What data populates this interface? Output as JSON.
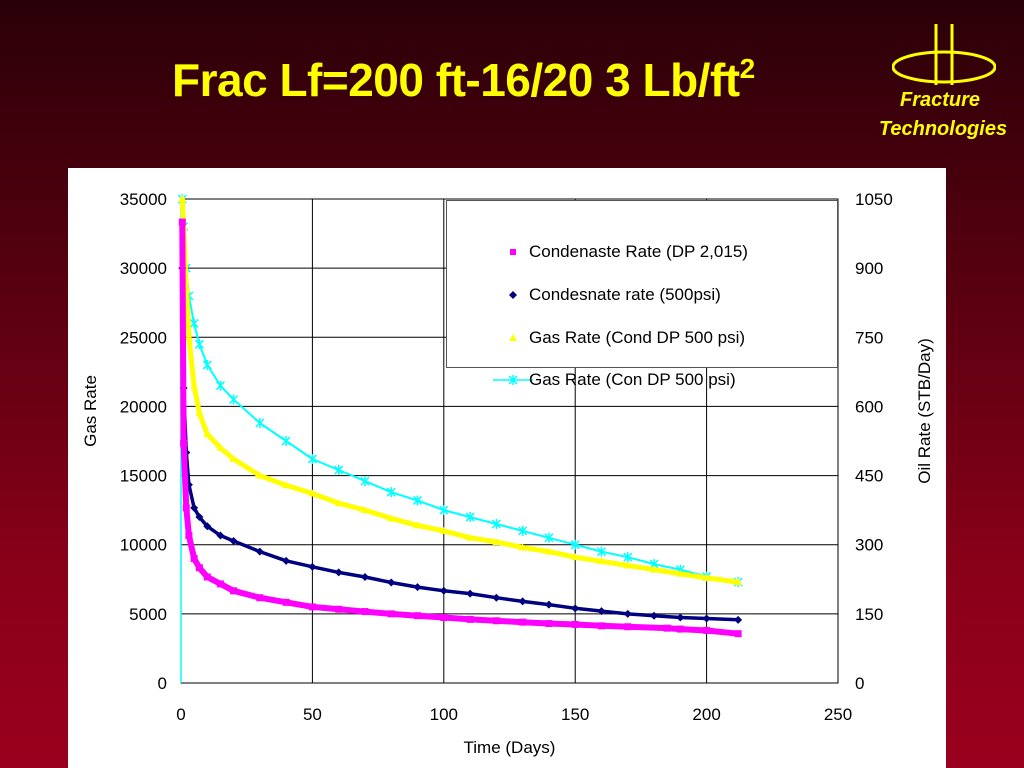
{
  "slide": {
    "title_main": "Frac Lf=200 ft-16/20 3 Lb/ft",
    "title_sup": "2",
    "logo_line1": "Fracture",
    "logo_line2": "Technologies",
    "logo_icon": "fracture-logo-icon"
  },
  "colors": {
    "title": "#ffff00",
    "background_top": "#2a0008",
    "background_bottom": "#9a001d"
  },
  "chart_data": {
    "type": "scatter",
    "title": "",
    "xlabel": "Time (Days)",
    "ylabel": "Gas Rate",
    "y2label": "Oil Rate (STB/Day)",
    "xlim": [
      0,
      250
    ],
    "ylim": [
      0,
      35000
    ],
    "y2lim": [
      0,
      1050
    ],
    "xticks": [
      "0",
      "50",
      "100",
      "150",
      "200",
      "250"
    ],
    "yticks": [
      "0",
      "5000",
      "10000",
      "15000",
      "20000",
      "25000",
      "30000",
      "35000"
    ],
    "y2ticks": [
      "0",
      "150",
      "300",
      "450",
      "600",
      "750",
      "900",
      "1050"
    ],
    "grid": true,
    "legend_position": "top-right",
    "series": [
      {
        "name": "Condenaste Rate (DP 2,015)",
        "axis": "right",
        "marker": "square",
        "color": "#ff00ff",
        "x": [
          0.5,
          1,
          2,
          3,
          5,
          7,
          10,
          15,
          20,
          30,
          40,
          50,
          60,
          70,
          80,
          90,
          100,
          110,
          120,
          130,
          140,
          150,
          160,
          170,
          185,
          190,
          200,
          212
        ],
        "y": [
          1000,
          520,
          380,
          320,
          270,
          250,
          230,
          215,
          200,
          185,
          175,
          165,
          160,
          155,
          150,
          146,
          142,
          138,
          135,
          132,
          129,
          127,
          124,
          122,
          119,
          117,
          114,
          107
        ]
      },
      {
        "name": "Condesnate rate (500psi)",
        "axis": "right",
        "marker": "diamond",
        "color": "#000080",
        "x": [
          0.5,
          1,
          2,
          3,
          5,
          7,
          10,
          15,
          20,
          30,
          40,
          50,
          60,
          70,
          80,
          90,
          100,
          110,
          120,
          130,
          140,
          150,
          160,
          170,
          180,
          190,
          200,
          212
        ],
        "y": [
          900,
          640,
          500,
          430,
          380,
          360,
          340,
          320,
          308,
          285,
          265,
          252,
          240,
          230,
          218,
          208,
          200,
          194,
          185,
          177,
          170,
          162,
          156,
          150,
          146,
          142,
          140,
          137
        ]
      },
      {
        "name": "Gas Rate (Cond DP 500 psi)",
        "axis": "left",
        "marker": "triangle",
        "color": "#ffff00",
        "x": [
          0.5,
          1,
          2,
          3,
          5,
          7,
          10,
          15,
          20,
          30,
          40,
          50,
          60,
          70,
          80,
          90,
          100,
          110,
          120,
          130,
          140,
          150,
          160,
          170,
          180,
          190,
          200,
          212
        ],
        "y": [
          35000,
          33000,
          28500,
          25000,
          21500,
          19500,
          18000,
          17000,
          16200,
          15000,
          14300,
          13700,
          13000,
          12500,
          11900,
          11400,
          11000,
          10500,
          10200,
          9800,
          9500,
          9100,
          8800,
          8500,
          8200,
          7900,
          7600,
          7300
        ]
      },
      {
        "name": "Gas Rate (Con DP 500 psi)",
        "axis": "left",
        "marker": "star",
        "color": "#00ffff",
        "x": [
          0.5,
          1,
          2,
          3,
          5,
          7,
          10,
          15,
          20,
          30,
          40,
          50,
          60,
          70,
          80,
          90,
          100,
          110,
          120,
          130,
          140,
          150,
          160,
          170,
          180,
          190,
          200,
          212
        ],
        "y": [
          35000,
          33000,
          30000,
          28000,
          26000,
          24500,
          23000,
          21500,
          20500,
          18800,
          17500,
          16200,
          15400,
          14600,
          13800,
          13200,
          12500,
          12000,
          11500,
          11000,
          10500,
          10000,
          9500,
          9100,
          8600,
          8200,
          7700,
          7300
        ]
      }
    ]
  }
}
